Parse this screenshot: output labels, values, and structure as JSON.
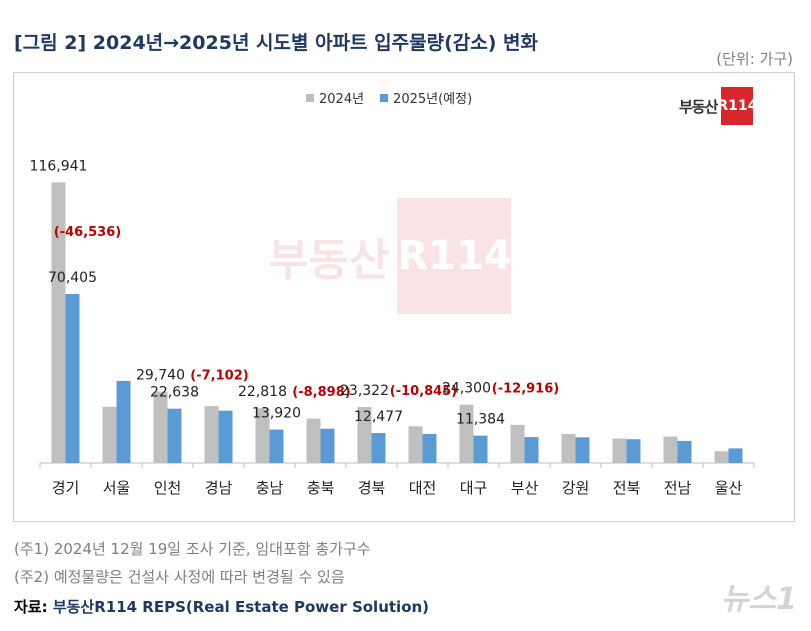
{
  "header": {
    "title": "[그림 2] 2024년→2025년 시도별 아파트 입주물량(감소) 변화",
    "unit": "(단위: 가구)"
  },
  "logo": {
    "text": "부동산",
    "box": "R114"
  },
  "watermark": {
    "text": "부동산",
    "box": "R114"
  },
  "notes": [
    "(주1) 2024년 12월 19일 조사 기준, 임대포함 총가구수",
    "(주2) 예정물량은 건설사 사정에 따라 변경될 수 있음"
  ],
  "source": {
    "label": "자료: ",
    "text": "부동산R114 REPS(Real Estate Power Solution)"
  },
  "news_watermark": "뉴스1",
  "colors": {
    "s2024": "#bfbfbf",
    "s2025": "#5b9bd5",
    "diff": "#c00000",
    "title": "#1f3864"
  },
  "chart_data": {
    "type": "bar",
    "categories": [
      "경기",
      "서울",
      "인천",
      "경남",
      "충남",
      "충북",
      "경북",
      "대전",
      "대구",
      "부산",
      "강원",
      "전북",
      "전남",
      "울산"
    ],
    "series": [
      {
        "name": "2024년",
        "values": [
          116941,
          23400,
          29740,
          23700,
          22818,
          18500,
          23322,
          15300,
          24300,
          15900,
          12100,
          10200,
          11000,
          4900
        ]
      },
      {
        "name": "2025년(예정)",
        "values": [
          70405,
          34200,
          22638,
          21800,
          13920,
          14300,
          12477,
          12100,
          11384,
          10800,
          10700,
          9900,
          9200,
          6100
        ]
      }
    ],
    "data_labels": [
      {
        "category": "경기",
        "v2024": "116,941",
        "v2025": "70,405",
        "diff": "(-46,536)"
      },
      {
        "category": "인천",
        "v2024": "29,740",
        "v2025": "22,638",
        "diff": "(-7,102)"
      },
      {
        "category": "충남",
        "v2024": "22,818",
        "v2025": "13,920",
        "diff": "(-8,898)"
      },
      {
        "category": "경북",
        "v2024": "23,322",
        "v2025": "12,477",
        "diff": "(-10,845)"
      },
      {
        "category": "대구",
        "v2024": "24,300",
        "v2025": "11,384",
        "diff": "(-12,916)"
      }
    ],
    "ylim": [
      0,
      125000
    ],
    "legend": "top-center",
    "grid": false
  }
}
